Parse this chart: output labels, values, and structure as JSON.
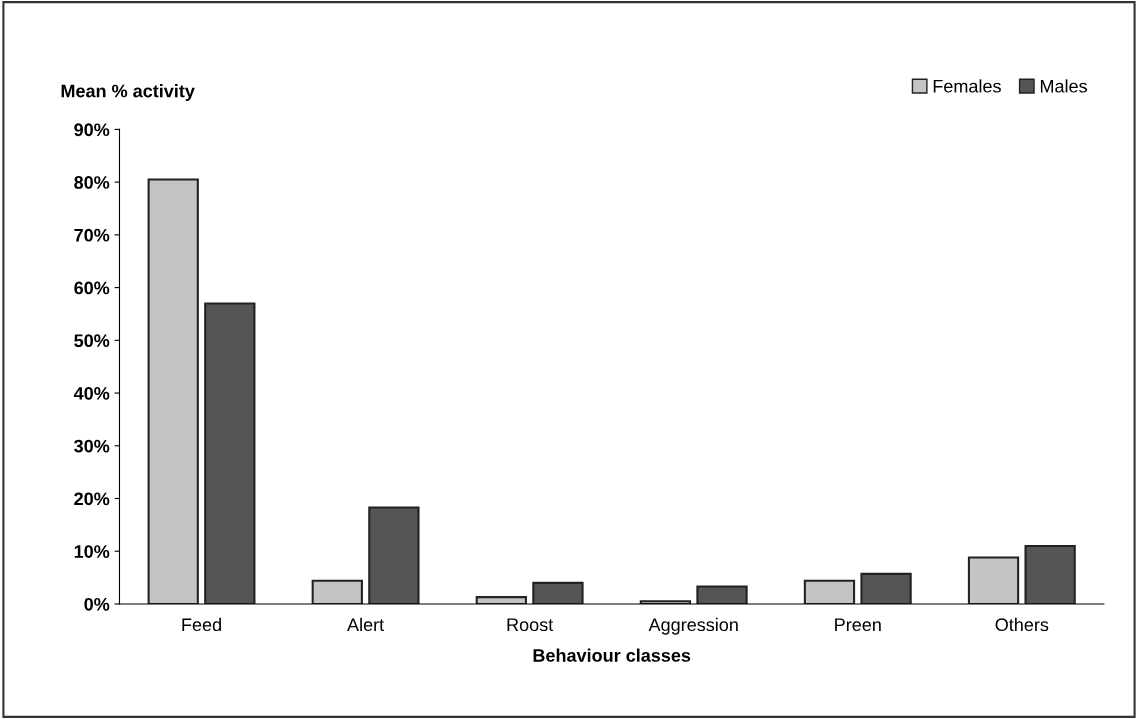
{
  "chart_data": {
    "type": "bar",
    "ylabel": "Mean % activity",
    "xlabel": "Behaviour classes",
    "categories": [
      "Feed",
      "Alert",
      "Roost",
      "Aggression",
      "Preen",
      "Others"
    ],
    "series": [
      {
        "name": "Females",
        "color": "#c4c4c4",
        "values": [
          80.5,
          4.4,
          1.3,
          0.5,
          4.4,
          8.8
        ]
      },
      {
        "name": "Males",
        "color": "#555555",
        "values": [
          57,
          18.3,
          4,
          3.3,
          5.7,
          11
        ]
      }
    ],
    "ylim": [
      0,
      90
    ],
    "yticks": [
      {
        "value": 0,
        "label": "0%"
      },
      {
        "value": 10,
        "label": "10%"
      },
      {
        "value": 20,
        "label": "20%"
      },
      {
        "value": 30,
        "label": "30%"
      },
      {
        "value": 40,
        "label": "40%"
      },
      {
        "value": 50,
        "label": "50%"
      },
      {
        "value": 60,
        "label": "60%"
      },
      {
        "value": 70,
        "label": "70%"
      },
      {
        "value": 80,
        "label": "80%"
      },
      {
        "value": 90,
        "label": "90%"
      }
    ],
    "grid": false,
    "legend": "top right"
  }
}
